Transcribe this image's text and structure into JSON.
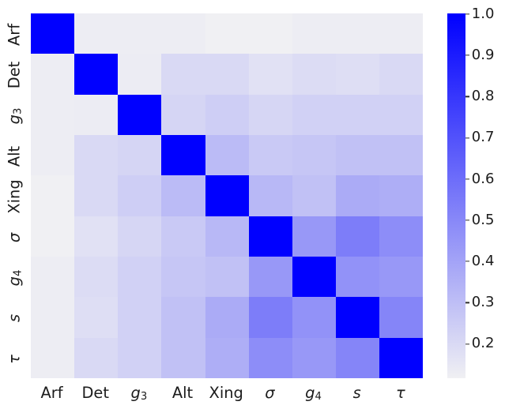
{
  "figure": {
    "background": "#ffffff",
    "text_color": "#1c1c1c"
  },
  "chart_data": {
    "type": "heatmap",
    "title": "",
    "description": "Correlation heatmap of knot invariants (Arf, Det, g3, Alt, Xing, sigma, g4, s, tau) with a blue sequential colormap and vertical colorbar",
    "categories": [
      "Arf",
      "Det",
      "g3",
      "Alt",
      "Xing",
      "σ",
      "g4",
      "s",
      "τ"
    ],
    "labels": [
      {
        "text": "Arf",
        "math": false
      },
      {
        "text": "Det",
        "math": false
      },
      {
        "text": "g",
        "sub": "3",
        "math": true
      },
      {
        "text": "Alt",
        "math": false
      },
      {
        "text": "Xing",
        "math": false
      },
      {
        "text": "σ",
        "math": true
      },
      {
        "text": "g",
        "sub": "4",
        "math": true
      },
      {
        "text": "s",
        "math": true
      },
      {
        "text": "τ",
        "math": true
      }
    ],
    "matrix": [
      [
        1.0,
        0.125,
        0.125,
        0.125,
        0.115,
        0.115,
        0.125,
        0.125,
        0.125
      ],
      [
        0.125,
        1.0,
        0.13,
        0.2,
        0.2,
        0.17,
        0.19,
        0.18,
        0.2
      ],
      [
        0.125,
        0.13,
        1.0,
        0.215,
        0.24,
        0.21,
        0.23,
        0.23,
        0.23
      ],
      [
        0.125,
        0.2,
        0.215,
        1.0,
        0.31,
        0.26,
        0.27,
        0.29,
        0.29
      ],
      [
        0.115,
        0.2,
        0.24,
        0.31,
        1.0,
        0.32,
        0.29,
        0.37,
        0.36
      ],
      [
        0.115,
        0.17,
        0.21,
        0.26,
        0.32,
        1.0,
        0.44,
        0.54,
        0.48
      ],
      [
        0.125,
        0.19,
        0.23,
        0.27,
        0.29,
        0.44,
        1.0,
        0.46,
        0.44
      ],
      [
        0.125,
        0.18,
        0.23,
        0.29,
        0.37,
        0.54,
        0.46,
        1.0,
        0.51
      ],
      [
        0.125,
        0.2,
        0.23,
        0.29,
        0.36,
        0.48,
        0.44,
        0.51,
        1.0
      ]
    ],
    "vmin": 0.115,
    "vmax": 1.0,
    "colormap": {
      "low": "#f0f0f3",
      "high": "#0000ff"
    },
    "colorbar": {
      "tick_values": [
        1.0,
        0.9,
        0.8,
        0.7,
        0.6,
        0.5,
        0.4,
        0.3,
        0.2
      ],
      "tick_labels": [
        "1.0",
        "0.9",
        "0.8",
        "0.7",
        "0.6",
        "0.5",
        "0.4",
        "0.3",
        "0.2"
      ]
    },
    "grid": false,
    "legend": false,
    "xlabel": "",
    "ylabel": ""
  }
}
